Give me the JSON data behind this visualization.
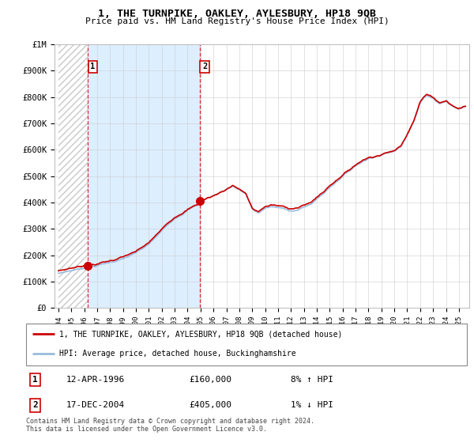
{
  "title": "1, THE TURNPIKE, OAKLEY, AYLESBURY, HP18 9QB",
  "subtitle": "Price paid vs. HM Land Registry's House Price Index (HPI)",
  "ylim": [
    0,
    1000000
  ],
  "yticks": [
    0,
    100000,
    200000,
    300000,
    400000,
    500000,
    600000,
    700000,
    800000,
    900000,
    1000000
  ],
  "ytick_labels": [
    "£0",
    "£100K",
    "£200K",
    "£300K",
    "£400K",
    "£500K",
    "£600K",
    "£700K",
    "£800K",
    "£900K",
    "£1M"
  ],
  "xlim_start": 1993.7,
  "xlim_end": 2025.8,
  "sale1_x": 1996.28,
  "sale1_y": 160000,
  "sale1_label": "1",
  "sale1_date": "12-APR-1996",
  "sale1_price": "£160,000",
  "sale1_hpi": "8% ↑ HPI",
  "sale2_x": 2004.96,
  "sale2_y": 405000,
  "sale2_label": "2",
  "sale2_date": "17-DEC-2004",
  "sale2_price": "£405,000",
  "sale2_hpi": "1% ↓ HPI",
  "line_color_red": "#cc0000",
  "line_color_blue": "#99bbdd",
  "shade_color": "#ddeeff",
  "hatch_color": "#cccccc",
  "grid_color": "#cccccc",
  "background_color": "#ffffff",
  "legend_label_red": "1, THE TURNPIKE, OAKLEY, AYLESBURY, HP18 9QB (detached house)",
  "legend_label_blue": "HPI: Average price, detached house, Buckinghamshire",
  "footer": "Contains HM Land Registry data © Crown copyright and database right 2024.\nThis data is licensed under the Open Government Licence v3.0.",
  "xtick_years": [
    1994,
    1995,
    1996,
    1997,
    1998,
    1999,
    2000,
    2001,
    2002,
    2003,
    2004,
    2005,
    2006,
    2007,
    2008,
    2009,
    2010,
    2011,
    2012,
    2013,
    2014,
    2015,
    2016,
    2017,
    2018,
    2019,
    2020,
    2021,
    2022,
    2023,
    2024,
    2025
  ]
}
